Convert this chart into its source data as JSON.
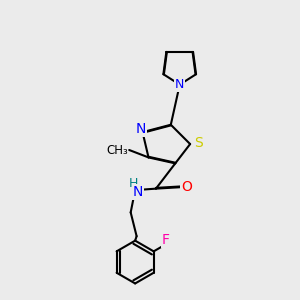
{
  "background_color": "#ebebeb",
  "bond_color": "#000000",
  "atom_colors": {
    "N": "#0000ff",
    "S": "#cccc00",
    "O": "#ff0000",
    "F": "#ff00aa",
    "H": "#008080",
    "C": "#000000"
  },
  "figsize": [
    3.0,
    3.0
  ],
  "dpi": 100
}
